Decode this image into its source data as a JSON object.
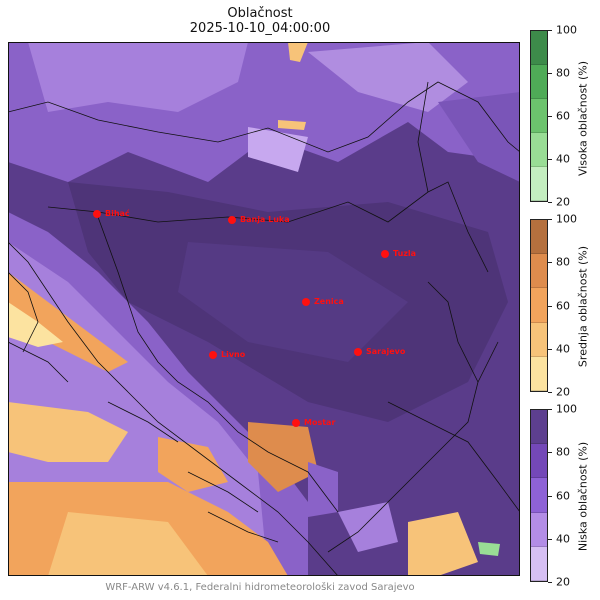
{
  "title": "Oblačnost",
  "timestamp": "2025-10-10_04:00:00",
  "footer": "WRF-ARW v4.6.1, Federalni hidrometeorološki zavod Sarajevo",
  "cities": [
    {
      "name": "Bihać"
    },
    {
      "name": "Banja Luka"
    },
    {
      "name": "Tuzla"
    },
    {
      "name": "Zenica"
    },
    {
      "name": "Livno"
    },
    {
      "name": "Sarajevo"
    },
    {
      "name": "Mostar"
    }
  ],
  "colorbars": [
    {
      "label": "Visoka oblačnost (%)",
      "ticks": [
        "100",
        "80",
        "60",
        "40",
        "20"
      ],
      "colors": [
        "#3d8b4a",
        "#4fab57",
        "#6cc36d",
        "#99dd95",
        "#c4eec0"
      ]
    },
    {
      "label": "Srednja oblačnost (%)",
      "ticks": [
        "100",
        "80",
        "60",
        "40",
        "20"
      ],
      "colors": [
        "#b5703e",
        "#de8c4d",
        "#f2a45c",
        "#f7c379",
        "#fce3a0"
      ]
    },
    {
      "label": "Niska oblačnost (%)",
      "ticks": [
        "100",
        "80",
        "60",
        "40",
        "20"
      ],
      "colors": [
        "#5d3f8f",
        "#7448b8",
        "#8e62d6",
        "#b38de6",
        "#d6bff3"
      ]
    }
  ]
}
